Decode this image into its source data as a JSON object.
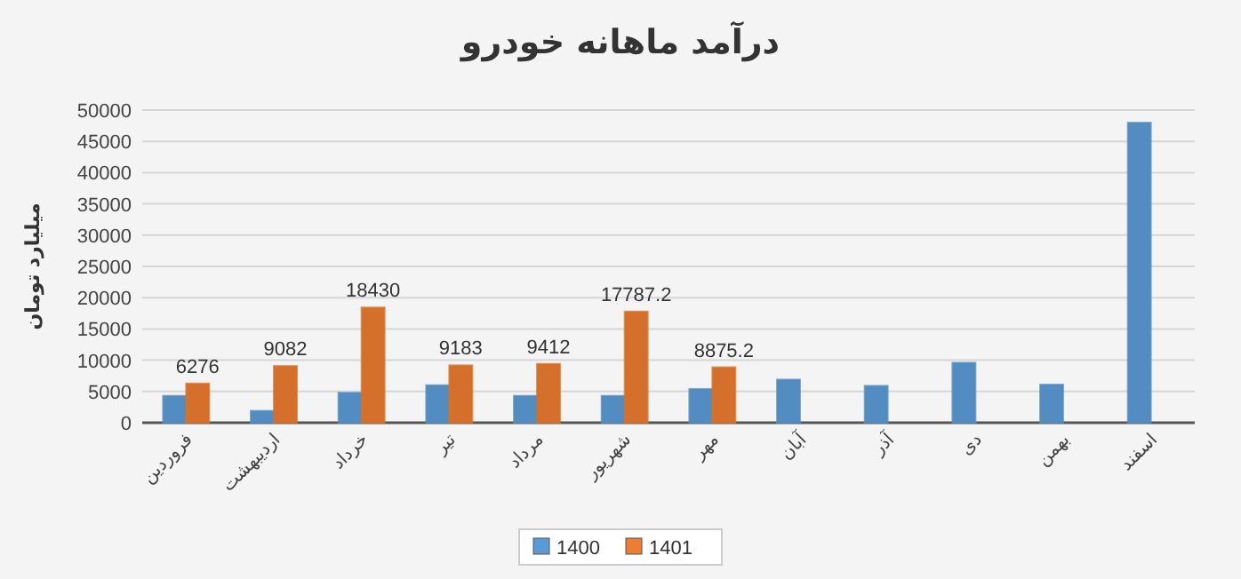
{
  "chart_data": {
    "type": "bar",
    "title": "درآمد ماهانه خودرو",
    "ylabel": "میلیارد تومان",
    "categories": [
      "فروردین",
      "اردیبهشت",
      "خرداد",
      "تیر",
      "مرداد",
      "شهریور",
      "مهر",
      "آبان",
      "آذر",
      "دی",
      "بهمن",
      "اسفند"
    ],
    "series": [
      {
        "name": "1400",
        "color": "#5b9bd5",
        "values": [
          4300,
          1900,
          4800,
          6000,
          4300,
          4300,
          5400,
          6900,
          5900,
          9600,
          6100,
          48000
        ]
      },
      {
        "name": "1401",
        "color": "#ed7d31",
        "values": [
          6276,
          9082,
          18430,
          9183,
          9412,
          17787.2,
          8875.2,
          null,
          null,
          null,
          null,
          null
        ],
        "value_labels": [
          "6276",
          "9082",
          "18430",
          "9183",
          "9412",
          "17787.2",
          "8875.2",
          null,
          null,
          null,
          null,
          null
        ]
      }
    ],
    "ylim": [
      0,
      50000
    ],
    "yticks": [
      0,
      5000,
      10000,
      15000,
      20000,
      25000,
      30000,
      35000,
      40000,
      45000,
      50000
    ],
    "grid": "y",
    "legend": "bottom"
  }
}
